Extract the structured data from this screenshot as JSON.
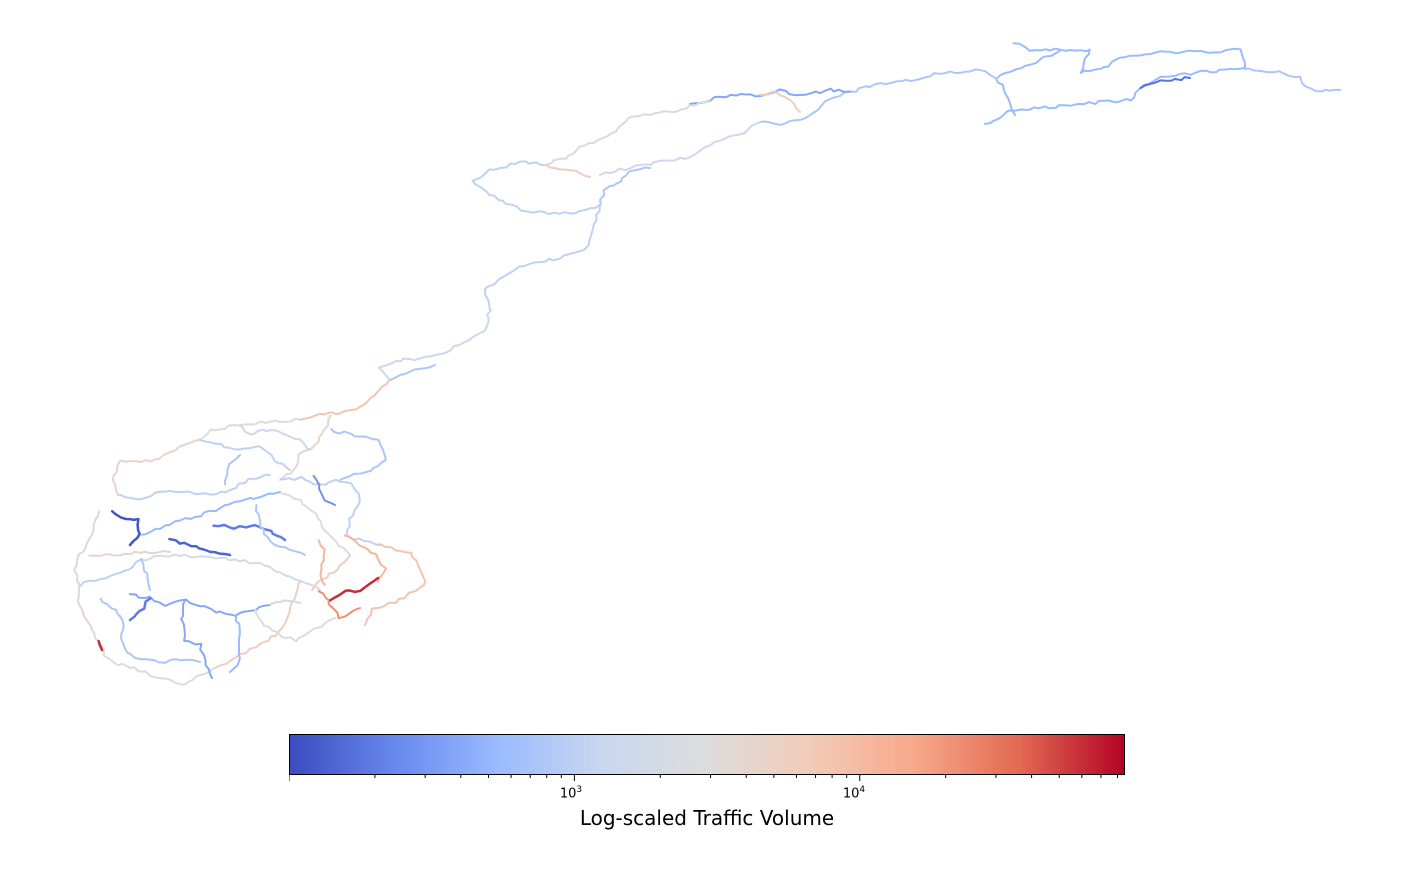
{
  "chart_data": {
    "type": "map",
    "description_of_marks": "road network line segments colored by log-scaled traffic volume",
    "colormap": [
      "#3b4cc0",
      "#6788ee",
      "#9abbff",
      "#c9d7f0",
      "#dddcdc",
      "#f2cbb7",
      "#f7a889",
      "#e26952",
      "#b40426"
    ],
    "colorbar": {
      "label": "Log-scaled Traffic Volume",
      "scale": "log",
      "range": [
        100,
        85000
      ],
      "ticks": [
        {
          "base": "10",
          "exp": "3",
          "value": 1000
        },
        {
          "base": "10",
          "exp": "4",
          "value": 10000
        }
      ]
    }
  },
  "colors": {
    "low": "#3b4cc0",
    "mid": "#dddcdc",
    "high": "#b40426"
  }
}
